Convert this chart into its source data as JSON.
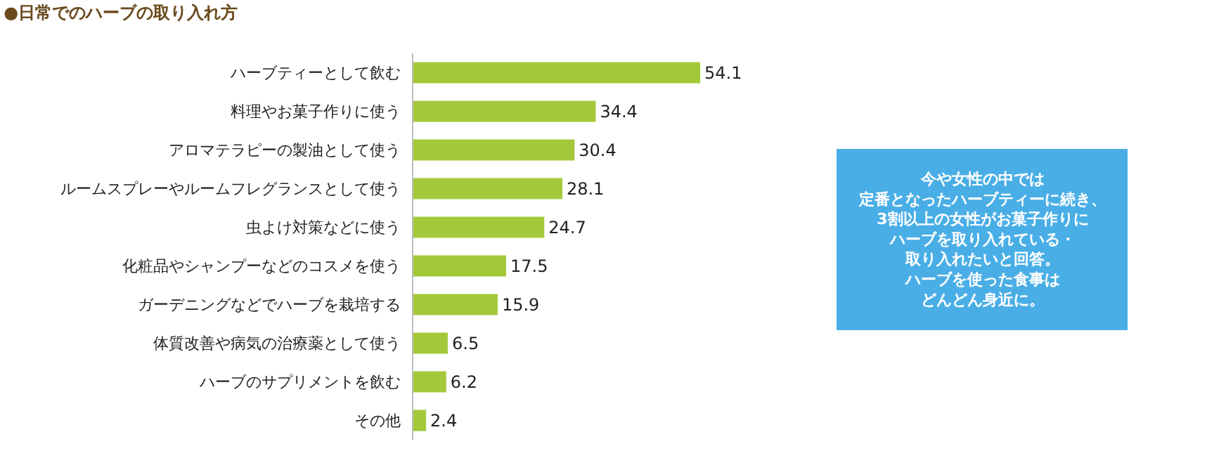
{
  "chart_data": {
    "type": "bar",
    "orientation": "horizontal",
    "title": "●日常でのハーブの取り入れ方",
    "categories": [
      "ハーブティーとして飲む",
      "料理やお菓子作りに使う",
      "アロマテラピーの製油として使う",
      "ルームスプレーやルームフレグランスとして使う",
      "虫よけ対策などに使う",
      "化粧品やシャンプーなどのコスメを使う",
      "ガーデニングなどでハーブを栽培する",
      "体質改善や病気の治療薬として使う",
      "ハーブのサプリメントを飲む",
      "その他"
    ],
    "values": [
      54.1,
      34.4,
      30.4,
      28.1,
      24.7,
      17.5,
      15.9,
      6.5,
      6.2,
      2.4
    ],
    "color": "#a3c93a",
    "data_labels": true,
    "annotations": [
      "今や女性の中では$^{}$定番となったハーブティーに続き、$^{}$3割以上の女性がお菓子作りに$^{}$ハーブを取り入れている・$^{}$取り入れたいと回答。$^{}$ハーブを使った食事は$^{}$どんどん身近に。"
    ]
  }
}
